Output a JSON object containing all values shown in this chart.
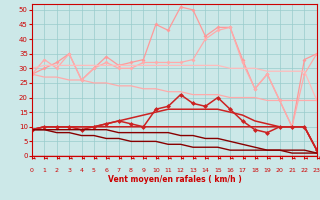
{
  "x": [
    0,
    1,
    2,
    3,
    4,
    5,
    6,
    7,
    8,
    9,
    10,
    11,
    12,
    13,
    14,
    15,
    16,
    17,
    18,
    19,
    20,
    21,
    22,
    23
  ],
  "series": [
    {
      "color": "#ffaaaa",
      "lw": 0.9,
      "marker": null,
      "values": [
        28,
        27,
        27,
        26,
        26,
        25,
        25,
        24,
        24,
        23,
        23,
        22,
        22,
        21,
        21,
        21,
        20,
        20,
        20,
        19,
        19,
        19,
        19,
        19
      ]
    },
    {
      "color": "#ff9999",
      "lw": 0.9,
      "marker": "D",
      "ms": 2.0,
      "values": [
        28,
        30,
        32,
        35,
        26,
        30,
        34,
        31,
        32,
        33,
        45,
        43,
        51,
        50,
        41,
        44,
        44,
        33,
        23,
        28,
        19,
        10,
        33,
        35
      ]
    },
    {
      "color": "#ffaaaa",
      "lw": 0.9,
      "marker": "D",
      "ms": 2.0,
      "values": [
        28,
        33,
        30,
        35,
        26,
        30,
        32,
        30,
        30,
        32,
        32,
        32,
        32,
        33,
        40,
        43,
        44,
        32,
        23,
        28,
        19,
        10,
        28,
        35
      ]
    },
    {
      "color": "#ffbbbb",
      "lw": 0.9,
      "marker": null,
      "values": [
        30,
        31,
        31,
        31,
        31,
        31,
        31,
        31,
        31,
        31,
        31,
        31,
        31,
        31,
        31,
        31,
        30,
        30,
        30,
        29,
        29,
        29,
        29,
        19
      ]
    },
    {
      "color": "#cc2222",
      "lw": 1.1,
      "marker": "D",
      "ms": 2.5,
      "values": [
        9,
        10,
        10,
        10,
        9,
        10,
        11,
        12,
        11,
        10,
        16,
        17,
        21,
        18,
        17,
        20,
        16,
        12,
        9,
        8,
        10,
        10,
        10,
        2
      ]
    },
    {
      "color": "#cc2222",
      "lw": 1.1,
      "marker": null,
      "values": [
        9,
        10,
        10,
        10,
        10,
        10,
        11,
        12,
        13,
        14,
        15,
        16,
        16,
        16,
        16,
        16,
        15,
        14,
        12,
        11,
        10,
        10,
        10,
        2
      ]
    },
    {
      "color": "#cc2222",
      "lw": 1.1,
      "marker": null,
      "values": [
        9,
        10,
        10,
        10,
        10,
        10,
        10,
        10,
        10,
        10,
        10,
        10,
        10,
        10,
        10,
        10,
        10,
        10,
        10,
        10,
        10,
        10,
        10,
        2
      ]
    },
    {
      "color": "#880000",
      "lw": 1.0,
      "marker": null,
      "values": [
        9,
        9,
        9,
        9,
        9,
        9,
        9,
        8,
        8,
        8,
        8,
        8,
        7,
        7,
        6,
        6,
        5,
        4,
        3,
        2,
        2,
        2,
        2,
        1
      ]
    },
    {
      "color": "#880000",
      "lw": 1.0,
      "marker": null,
      "values": [
        9,
        9,
        8,
        8,
        7,
        7,
        6,
        6,
        5,
        5,
        5,
        4,
        4,
        3,
        3,
        3,
        2,
        2,
        2,
        2,
        2,
        1,
        1,
        1
      ]
    }
  ],
  "xlabel": "Vent moyen/en rafales ( km/h )",
  "xlim": [
    0,
    23
  ],
  "ylim": [
    0,
    52
  ],
  "yticks": [
    0,
    5,
    10,
    15,
    20,
    25,
    30,
    35,
    40,
    45,
    50
  ],
  "xticks": [
    0,
    1,
    2,
    3,
    4,
    5,
    6,
    7,
    8,
    9,
    10,
    11,
    12,
    13,
    14,
    15,
    16,
    17,
    18,
    19,
    20,
    21,
    22,
    23
  ],
  "bg_color": "#cce8e8",
  "grid_color": "#99cccc",
  "axis_color": "#cc0000",
  "label_color": "#cc0000",
  "tick_color": "#cc0000"
}
